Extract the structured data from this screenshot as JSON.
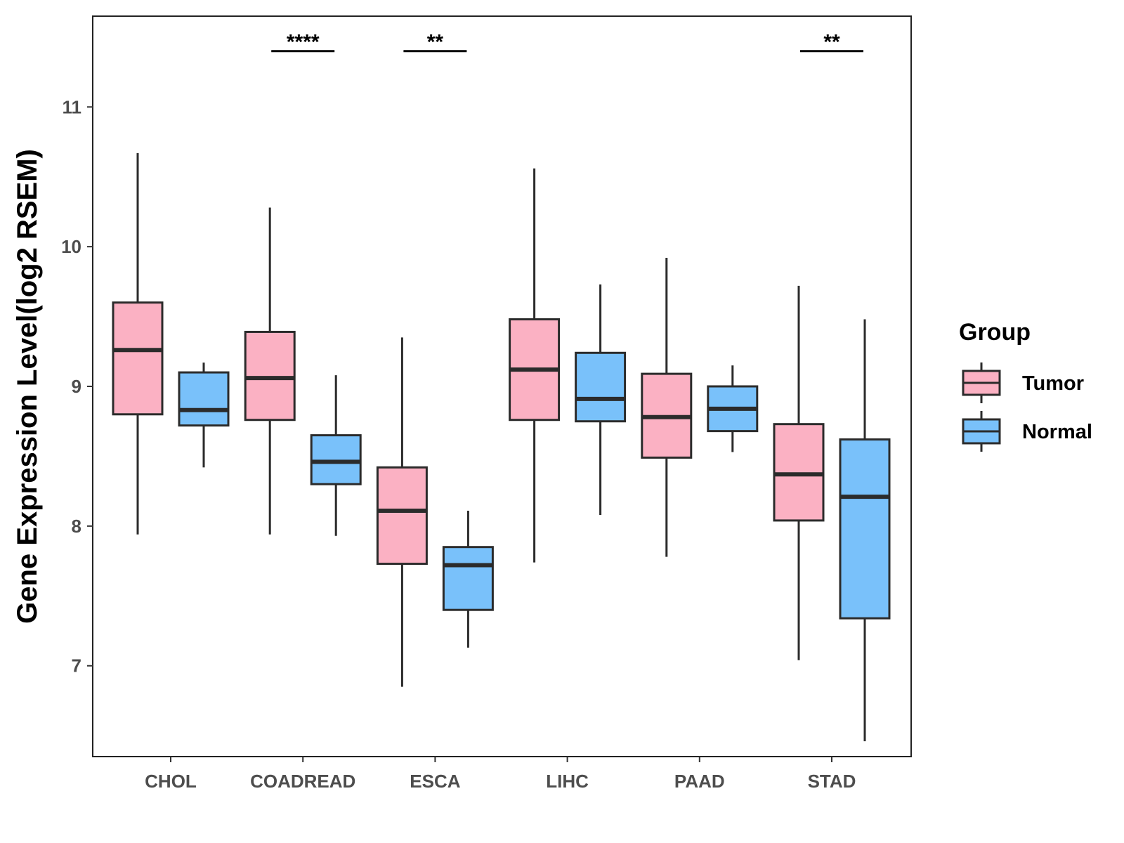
{
  "chart_data": {
    "type": "box",
    "title": "",
    "xlabel": "",
    "ylabel": "Gene Expression Level(log2 RSEM)",
    "ylim": [
      6.35,
      11.65
    ],
    "yticks": [
      7,
      8,
      9,
      10,
      11
    ],
    "ytick_labels": [
      "7",
      "8",
      "9",
      "10",
      "11"
    ],
    "categories": [
      "CHOL",
      "COADREAD",
      "ESCA",
      "LIHC",
      "PAAD",
      "STAD"
    ],
    "grid": false,
    "legend": {
      "title": "Group",
      "position": "right",
      "entries": [
        {
          "name": "Tumor",
          "color": "#FBB1C3"
        },
        {
          "name": "Normal",
          "color": "#79C1FA"
        }
      ]
    },
    "series": [
      {
        "name": "Tumor",
        "color": "#FBB1C3",
        "boxes": [
          {
            "category": "CHOL",
            "min": 7.94,
            "q1": 8.8,
            "median": 9.26,
            "q3": 9.6,
            "max": 10.67
          },
          {
            "category": "COADREAD",
            "min": 7.94,
            "q1": 8.76,
            "median": 9.06,
            "q3": 9.39,
            "max": 10.28
          },
          {
            "category": "ESCA",
            "min": 6.85,
            "q1": 7.73,
            "median": 8.11,
            "q3": 8.42,
            "max": 9.35
          },
          {
            "category": "LIHC",
            "min": 7.74,
            "q1": 8.76,
            "median": 9.12,
            "q3": 9.48,
            "max": 10.56
          },
          {
            "category": "PAAD",
            "min": 7.78,
            "q1": 8.49,
            "median": 8.78,
            "q3": 9.09,
            "max": 9.92
          },
          {
            "category": "STAD",
            "min": 7.04,
            "q1": 8.04,
            "median": 8.37,
            "q3": 8.73,
            "max": 9.72
          }
        ]
      },
      {
        "name": "Normal",
        "color": "#79C1FA",
        "boxes": [
          {
            "category": "CHOL",
            "min": 8.42,
            "q1": 8.72,
            "median": 8.83,
            "q3": 9.1,
            "max": 9.17
          },
          {
            "category": "COADREAD",
            "min": 7.93,
            "q1": 8.3,
            "median": 8.46,
            "q3": 8.65,
            "max": 9.08
          },
          {
            "category": "ESCA",
            "min": 7.13,
            "q1": 7.4,
            "median": 7.72,
            "q3": 7.85,
            "max": 8.11
          },
          {
            "category": "LIHC",
            "min": 8.08,
            "q1": 8.75,
            "median": 8.91,
            "q3": 9.24,
            "max": 9.73
          },
          {
            "category": "PAAD",
            "min": 8.53,
            "q1": 8.68,
            "median": 8.84,
            "q3": 9.0,
            "max": 9.15
          },
          {
            "category": "STAD",
            "min": 6.46,
            "q1": 7.34,
            "median": 8.21,
            "q3": 8.62,
            "max": 9.48
          }
        ]
      }
    ],
    "significance": [
      {
        "category": "COADREAD",
        "label": "****",
        "y": 11.4
      },
      {
        "category": "ESCA",
        "label": "**",
        "y": 11.4
      },
      {
        "category": "STAD",
        "label": "**",
        "y": 11.4
      }
    ]
  }
}
